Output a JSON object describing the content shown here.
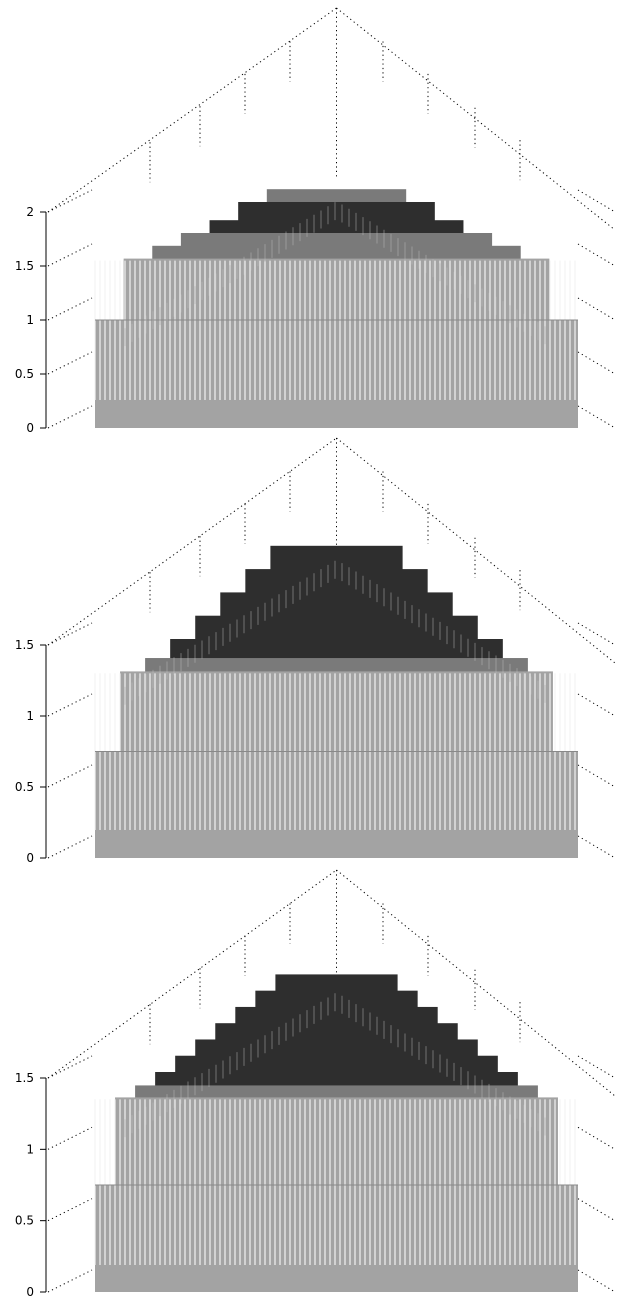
{
  "chart_data": [
    {
      "type": "bar3d",
      "zlim": [
        0,
        2
      ],
      "z_ticks": [
        "0",
        "0.5",
        "1",
        "1.5",
        "2"
      ],
      "grid": true,
      "colors": {
        "front": "#a3a3a3",
        "mid": "#7a7a7a",
        "dark": "#2e2e2e"
      },
      "steps": [
        {
          "level": 1.0,
          "color": "front"
        },
        {
          "level": 1.55,
          "color": "front"
        },
        {
          "level": 1.65,
          "color": "mid"
        },
        {
          "level": 1.75,
          "color": "mid"
        },
        {
          "level": 1.85,
          "color": "dark"
        },
        {
          "level": 2.0,
          "color": "dark"
        },
        {
          "level": 2.1,
          "color": "mid"
        }
      ]
    },
    {
      "type": "bar3d",
      "zlim": [
        0,
        1.5
      ],
      "z_ticks": [
        "0",
        "0.5",
        "1",
        "1.5"
      ],
      "grid": true,
      "colors": {
        "front": "#a3a3a3",
        "mid": "#7a7a7a",
        "dark": "#2e2e2e"
      },
      "steps": [
        {
          "level": 0.75,
          "color": "front"
        },
        {
          "level": 1.3,
          "color": "front"
        },
        {
          "level": 1.38,
          "color": "mid"
        },
        {
          "level": 1.5,
          "color": "dark"
        },
        {
          "level": 1.65,
          "color": "dark"
        },
        {
          "level": 1.8,
          "color": "dark"
        },
        {
          "level": 1.95,
          "color": "dark"
        },
        {
          "level": 2.1,
          "color": "dark"
        }
      ]
    },
    {
      "type": "bar3d",
      "zlim": [
        0,
        1.5
      ],
      "z_ticks": [
        "0",
        "0.5",
        "1",
        "1.5"
      ],
      "grid": true,
      "colors": {
        "front": "#a3a3a3",
        "mid": "#7a7a7a",
        "dark": "#2e2e2e"
      },
      "steps": [
        {
          "level": 0.75,
          "color": "front"
        },
        {
          "level": 1.35,
          "color": "front"
        },
        {
          "level": 1.42,
          "color": "mid"
        },
        {
          "level": 1.5,
          "color": "dark"
        },
        {
          "level": 1.6,
          "color": "dark"
        },
        {
          "level": 1.7,
          "color": "dark"
        },
        {
          "level": 1.8,
          "color": "dark"
        },
        {
          "level": 1.9,
          "color": "dark"
        },
        {
          "level": 2.0,
          "color": "dark"
        },
        {
          "level": 2.1,
          "color": "dark"
        }
      ]
    }
  ]
}
